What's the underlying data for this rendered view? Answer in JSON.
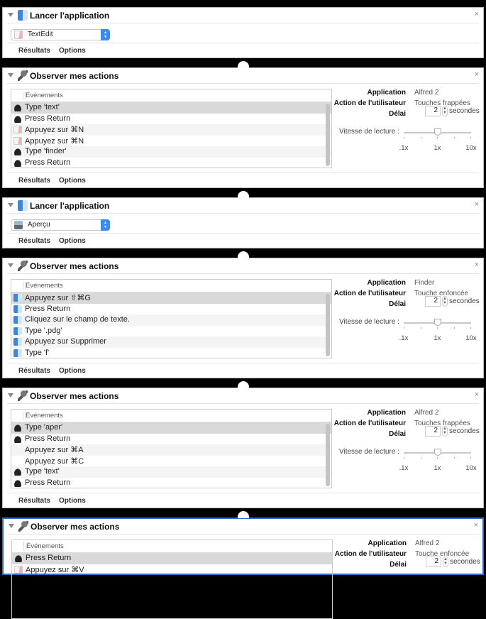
{
  "colors": {
    "accent": "#3a8cf5",
    "selection_border": "#2a6bd6",
    "background": "#000000"
  },
  "common": {
    "results": "Résultats",
    "options": "Options",
    "events_header": "Événements",
    "close": "×",
    "labels": {
      "application": "Application",
      "user_action": "Action de l'utilisateur",
      "delay": "Délai",
      "seconds": "secondes",
      "speed": "Vitesse de lecture :"
    },
    "speed_ticks": [
      ".1x",
      "1x",
      "10x"
    ]
  },
  "blocks": [
    {
      "type": "launch",
      "title": "Lancer l'application",
      "icon": "finder",
      "app": "TextEdit",
      "app_icon": "textedit"
    },
    {
      "type": "watch",
      "title": "Observer mes actions",
      "icon": "robot",
      "application": "Alfred 2",
      "user_action": "Touches frappées",
      "delay": "2",
      "speed": "1x",
      "speed_fraction": 0.5,
      "events": [
        {
          "label": "Type 'text'",
          "icon": "alfred"
        },
        {
          "label": "Press Return",
          "icon": "alfred"
        },
        {
          "label": "Appuyez sur ⌘N",
          "icon": "textedit"
        },
        {
          "label": "Appuyez sur ⌘N",
          "icon": "textedit"
        },
        {
          "label": "Type 'finder'",
          "icon": "alfred"
        },
        {
          "label": "Press Return",
          "icon": "alfred"
        }
      ]
    },
    {
      "type": "launch",
      "title": "Lancer l'application",
      "icon": "finder",
      "app": "Aperçu",
      "app_icon": "apercu"
    },
    {
      "type": "watch",
      "title": "Observer mes actions",
      "icon": "robot",
      "application": "Finder",
      "user_action": "Touche enfoncée",
      "delay": "2",
      "speed": "1x",
      "speed_fraction": 0.5,
      "events": [
        {
          "label": "Appuyez sur ⇧⌘G",
          "icon": "finder"
        },
        {
          "label": "Press Return",
          "icon": "finder"
        },
        {
          "label": "Cliquez sur le champ de texte.",
          "icon": "finder"
        },
        {
          "label": "Type '.pdg'",
          "icon": "finder"
        },
        {
          "label": "Appuyez sur Supprimer",
          "icon": "finder"
        },
        {
          "label": "Type 'f'",
          "icon": "finder"
        }
      ]
    },
    {
      "type": "watch",
      "title": "Observer mes actions",
      "icon": "robot",
      "application": "Alfred 2",
      "user_action": "Touches frappées",
      "delay": "2",
      "speed": "1x",
      "speed_fraction": 0.5,
      "events": [
        {
          "label": "Type 'aper'",
          "icon": "alfred"
        },
        {
          "label": "Press Return",
          "icon": "alfred"
        },
        {
          "label": "Appuyez sur ⌘A",
          "icon": "none"
        },
        {
          "label": "Appuyez sur ⌘C",
          "icon": "none"
        },
        {
          "label": "Type 'text'",
          "icon": "alfred"
        },
        {
          "label": "Press Return",
          "icon": "alfred"
        }
      ]
    },
    {
      "type": "watch",
      "title": "Observer mes actions",
      "icon": "robot",
      "selected": true,
      "application": "Alfred 2",
      "user_action": "Touche enfoncée",
      "delay": "2",
      "events": [
        {
          "label": "Press Return",
          "icon": "alfred"
        },
        {
          "label": "Appuyez sur ⌘V",
          "icon": "textedit"
        }
      ]
    }
  ]
}
